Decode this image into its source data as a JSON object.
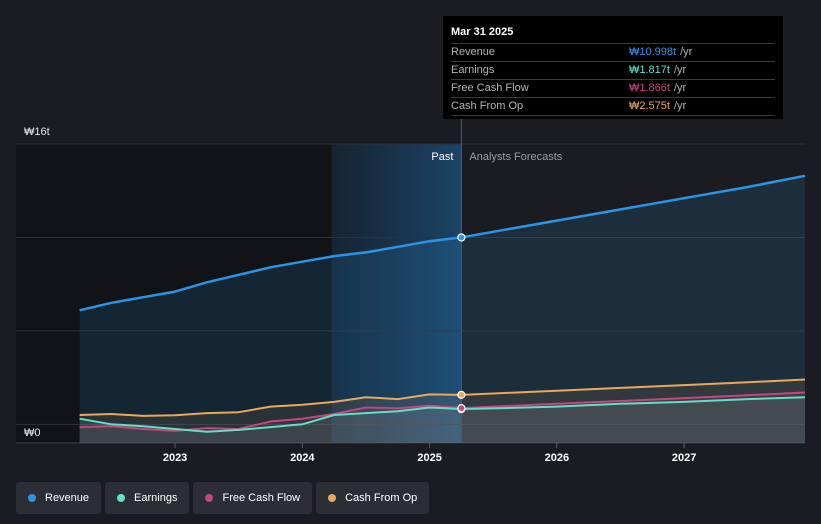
{
  "tooltip": {
    "date": "Mar 31 2025",
    "rows": [
      {
        "label": "Revenue",
        "value": "₩10.998t",
        "unit": "/yr",
        "color": "#2b94e5"
      },
      {
        "label": "Earnings",
        "value": "₩1.817t",
        "unit": "/yr",
        "color": "#5fe0c9"
      },
      {
        "label": "Free Cash Flow",
        "value": "₩1.866t",
        "unit": "/yr",
        "color": "#c7457f"
      },
      {
        "label": "Cash From Op",
        "value": "₩2.575t",
        "unit": "/yr",
        "color": "#e8a95c"
      }
    ]
  },
  "sections": {
    "past": "Past",
    "forecast": "Analysts Forecasts"
  },
  "legend": [
    {
      "label": "Revenue",
      "color": "#2b94e5"
    },
    {
      "label": "Earnings",
      "color": "#5fe0c9"
    },
    {
      "label": "Free Cash Flow",
      "color": "#c7457f"
    },
    {
      "label": "Cash From Op",
      "color": "#e8a95c"
    }
  ],
  "chart_data": {
    "type": "line",
    "ylim": [
      0,
      16
    ],
    "y_tick_labels": [
      "₩16t",
      "₩0"
    ],
    "x_ticks": [
      {
        "x": 2023.0,
        "label": "2023"
      },
      {
        "x": 2024.0,
        "label": "2024"
      },
      {
        "x": 2025.0,
        "label": "2025"
      },
      {
        "x": 2026.0,
        "label": "2026"
      },
      {
        "x": 2027.0,
        "label": "2027"
      }
    ],
    "xlim": [
      2021.75,
      2027.95
    ],
    "past_start": 2024.23,
    "forecast_start": 2025.25,
    "series": [
      {
        "name": "Revenue",
        "color": "#2b94e5",
        "x": [
          2022.25,
          2022.5,
          2022.75,
          2023.0,
          2023.25,
          2023.5,
          2023.75,
          2024.0,
          2024.25,
          2024.5,
          2024.75,
          2025.0,
          2025.25,
          2025.5,
          2026.0,
          2026.5,
          2027.0,
          2027.5,
          2027.95
        ],
        "y": [
          7.1,
          7.5,
          7.8,
          8.1,
          8.6,
          9.0,
          9.4,
          9.7,
          10.0,
          10.2,
          10.5,
          10.8,
          11.0,
          11.3,
          11.9,
          12.5,
          13.1,
          13.7,
          14.3
        ]
      },
      {
        "name": "Earnings",
        "color": "#5fe0c9",
        "x": [
          2022.25,
          2022.5,
          2022.75,
          2023.0,
          2023.25,
          2023.5,
          2023.75,
          2024.0,
          2024.25,
          2024.5,
          2024.75,
          2025.0,
          2025.25,
          2025.5,
          2026.0,
          2026.5,
          2027.0,
          2027.5,
          2027.95
        ],
        "y": [
          1.3,
          1.0,
          0.9,
          0.75,
          0.6,
          0.7,
          0.85,
          1.0,
          1.5,
          1.6,
          1.7,
          1.9,
          1.817,
          1.85,
          1.95,
          2.1,
          2.2,
          2.35,
          2.45
        ]
      },
      {
        "name": "Free Cash Flow",
        "color": "#c7457f",
        "x": [
          2022.25,
          2022.5,
          2022.75,
          2023.0,
          2023.25,
          2023.5,
          2023.75,
          2024.0,
          2024.25,
          2024.5,
          2024.75,
          2025.0,
          2025.25,
          2025.5,
          2026.0,
          2026.5,
          2027.0,
          2027.5,
          2027.95
        ],
        "y": [
          0.85,
          0.9,
          0.75,
          0.65,
          0.8,
          0.75,
          1.15,
          1.3,
          1.55,
          1.9,
          1.85,
          2.0,
          1.866,
          1.95,
          2.1,
          2.25,
          2.4,
          2.55,
          2.7
        ]
      },
      {
        "name": "Cash From Op",
        "color": "#e8a95c",
        "x": [
          2022.25,
          2022.5,
          2022.75,
          2023.0,
          2023.25,
          2023.5,
          2023.75,
          2024.0,
          2024.25,
          2024.5,
          2024.75,
          2025.0,
          2025.25,
          2025.5,
          2026.0,
          2026.5,
          2027.0,
          2027.5,
          2027.95
        ],
        "y": [
          1.5,
          1.55,
          1.45,
          1.48,
          1.6,
          1.65,
          1.95,
          2.05,
          2.2,
          2.45,
          2.35,
          2.6,
          2.575,
          2.65,
          2.8,
          2.95,
          3.1,
          3.25,
          3.4
        ]
      }
    ]
  }
}
